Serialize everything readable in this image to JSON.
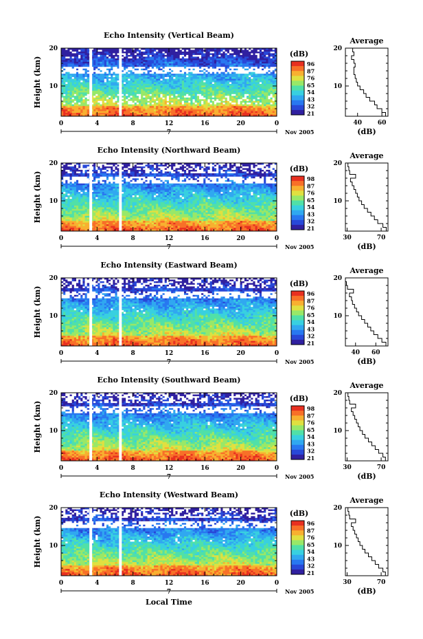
{
  "figure": {
    "xlabel": "Local Time",
    "date_label": "Nov 2005",
    "day_marker": "7",
    "ylabel": "Height (km)",
    "colorbar_title": "(dB)",
    "average_title": "Average",
    "average_xlabel": "(dB)"
  },
  "colormap": [
    "#3020a0",
    "#2848d8",
    "#2878f0",
    "#30a8f0",
    "#38d0e0",
    "#50e0a8",
    "#98e868",
    "#e0e040",
    "#f8b030",
    "#f87028",
    "#e83020"
  ],
  "chart_data": [
    {
      "type": "heatmap",
      "title": "Echo Intensity (Vertical Beam)",
      "xlabel": "",
      "ylabel": "Height (km)",
      "xlim": [
        0,
        24
      ],
      "ylim": [
        2,
        20
      ],
      "xticks": [
        "0",
        "4",
        "8",
        "12",
        "16",
        "20",
        "0"
      ],
      "yticks": [
        "10",
        "20"
      ],
      "colorbar_ticks": [
        "96",
        "87",
        "76",
        "65",
        "54",
        "43",
        "32",
        "21"
      ],
      "gaps_hours": [
        3.3,
        6.6
      ],
      "profile": {
        "xticks": [
          "40",
          "60"
        ],
        "xlim": [
          30,
          65
        ],
        "heights": [
          2,
          3,
          4,
          5,
          6,
          7,
          8,
          9,
          10,
          11,
          12,
          13,
          14,
          15,
          16,
          17,
          18,
          19,
          20
        ],
        "values": [
          63,
          60,
          56,
          54,
          50,
          47,
          45,
          42,
          40,
          39,
          38,
          37,
          37,
          38,
          37,
          35,
          37,
          36,
          37
        ]
      }
    },
    {
      "type": "heatmap",
      "title": "Echo Intensity (Northward Beam)",
      "xlabel": "",
      "ylabel": "Height (km)",
      "xlim": [
        0,
        24
      ],
      "ylim": [
        2,
        20
      ],
      "xticks": [
        "0",
        "4",
        "8",
        "12",
        "16",
        "20",
        "0"
      ],
      "yticks": [
        "10",
        "20"
      ],
      "colorbar_ticks": [
        "98",
        "87",
        "76",
        "65",
        "54",
        "43",
        "32",
        "21"
      ],
      "gaps_hours": [
        3.3,
        6.6
      ],
      "profile": {
        "xticks": [
          "30",
          "70"
        ],
        "xlim": [
          28,
          78
        ],
        "heights": [
          2,
          3,
          4,
          5,
          6,
          7,
          8,
          9,
          10,
          11,
          12,
          13,
          14,
          15,
          16,
          17,
          18,
          19,
          20
        ],
        "values": [
          76,
          72,
          66,
          62,
          58,
          54,
          50,
          47,
          44,
          42,
          40,
          38,
          36,
          34,
          40,
          33,
          32,
          31,
          32
        ]
      }
    },
    {
      "type": "heatmap",
      "title": "Echo Intensity (Eastward Beam)",
      "xlabel": "",
      "ylabel": "Height (km)",
      "xlim": [
        0,
        24
      ],
      "ylim": [
        2,
        20
      ],
      "xticks": [
        "0",
        "4",
        "8",
        "12",
        "16",
        "20",
        "0"
      ],
      "yticks": [
        "10",
        "20"
      ],
      "colorbar_ticks": [
        "96",
        "87",
        "76",
        "65",
        "54",
        "43",
        "32",
        "21"
      ],
      "gaps_hours": [
        3.3,
        6.6
      ],
      "profile": {
        "xticks": [
          "40",
          "60"
        ],
        "xlim": [
          30,
          72
        ],
        "heights": [
          2,
          3,
          4,
          5,
          6,
          7,
          8,
          9,
          10,
          11,
          12,
          13,
          14,
          15,
          16,
          17,
          18,
          19,
          20
        ],
        "values": [
          70,
          66,
          62,
          58,
          55,
          52,
          49,
          46,
          43,
          41,
          39,
          37,
          36,
          34,
          38,
          32,
          31,
          30,
          31
        ]
      }
    },
    {
      "type": "heatmap",
      "title": "Echo Intensity (Southward Beam)",
      "xlabel": "",
      "ylabel": "Height (km)",
      "xlim": [
        0,
        24
      ],
      "ylim": [
        2,
        20
      ],
      "xticks": [
        "0",
        "4",
        "8",
        "12",
        "16",
        "20",
        "0"
      ],
      "yticks": [
        "10",
        "20"
      ],
      "colorbar_ticks": [
        "98",
        "87",
        "76",
        "65",
        "54",
        "43",
        "32",
        "21"
      ],
      "gaps_hours": [
        3.3,
        6.6
      ],
      "profile": {
        "xticks": [
          "30",
          "70"
        ],
        "xlim": [
          28,
          78
        ],
        "heights": [
          2,
          3,
          4,
          5,
          6,
          7,
          8,
          9,
          10,
          11,
          12,
          13,
          14,
          15,
          16,
          17,
          18,
          19,
          20
        ],
        "values": [
          75,
          72,
          67,
          63,
          59,
          55,
          51,
          48,
          45,
          43,
          41,
          39,
          37,
          35,
          40,
          33,
          32,
          31,
          32
        ]
      }
    },
    {
      "type": "heatmap",
      "title": "Echo Intensity (Westward Beam)",
      "xlabel": "",
      "ylabel": "Height (km)",
      "xlim": [
        0,
        24
      ],
      "ylim": [
        2,
        20
      ],
      "xticks": [
        "0",
        "4",
        "8",
        "12",
        "16",
        "20",
        "0"
      ],
      "yticks": [
        "10",
        "20"
      ],
      "colorbar_ticks": [
        "96",
        "87",
        "76",
        "65",
        "54",
        "43",
        "32",
        "21"
      ],
      "gaps_hours": [
        3.3,
        6.6
      ],
      "profile": {
        "xticks": [
          "30",
          "70"
        ],
        "xlim": [
          28,
          78
        ],
        "heights": [
          2,
          3,
          4,
          5,
          6,
          7,
          8,
          9,
          10,
          11,
          12,
          13,
          14,
          15,
          16,
          17,
          18,
          19,
          20
        ],
        "values": [
          75,
          72,
          67,
          63,
          59,
          55,
          51,
          48,
          45,
          43,
          41,
          39,
          37,
          35,
          40,
          33,
          32,
          31,
          32
        ]
      }
    }
  ]
}
